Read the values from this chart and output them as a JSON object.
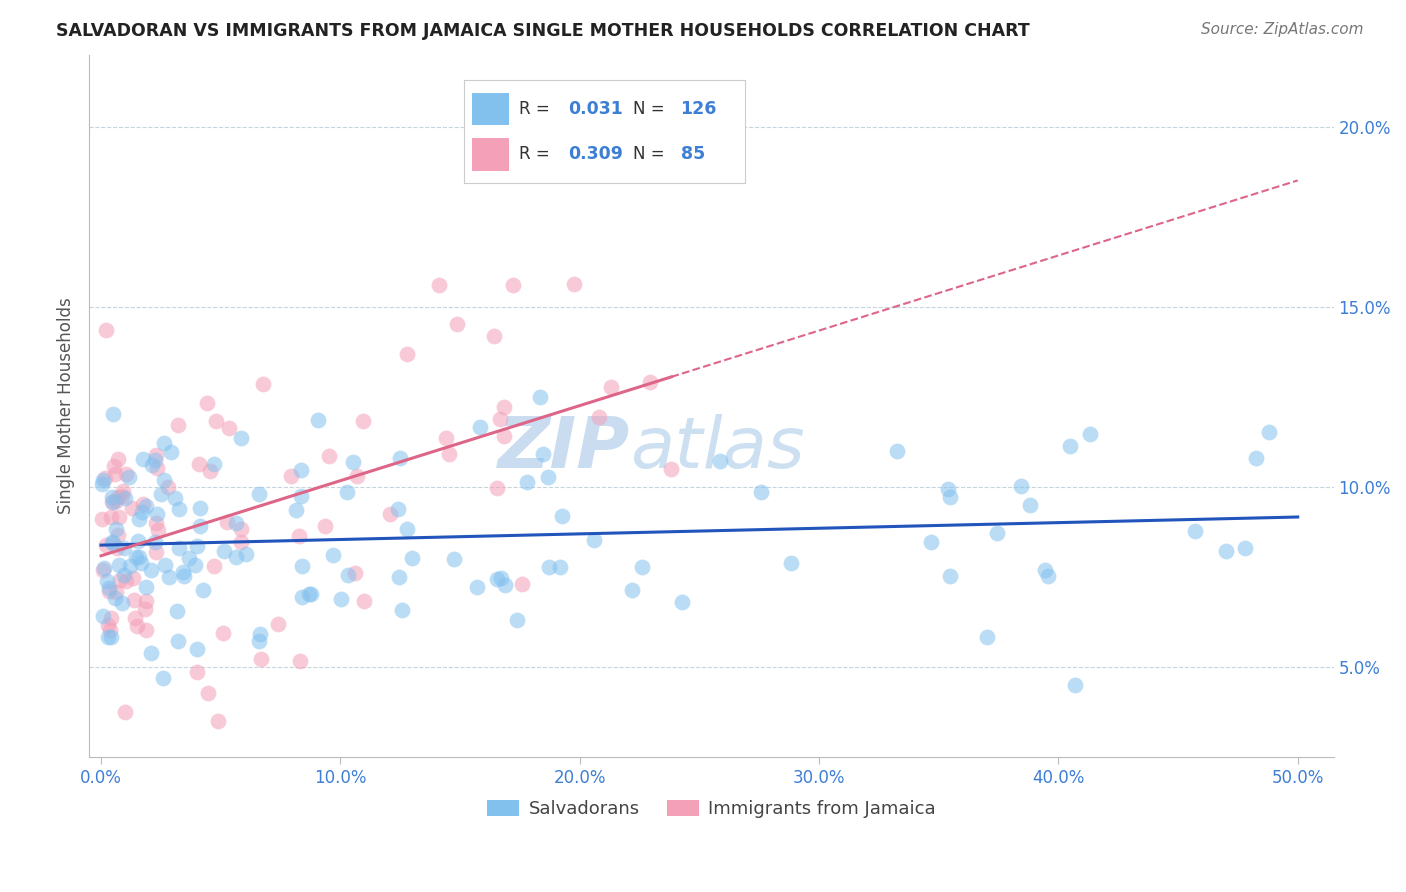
{
  "title": "SALVADORAN VS IMMIGRANTS FROM JAMAICA SINGLE MOTHER HOUSEHOLDS CORRELATION CHART",
  "source_text": "Source: ZipAtlas.com",
  "ylabel": "Single Mother Households",
  "xlabel_vals": [
    0.0,
    10.0,
    20.0,
    30.0,
    40.0,
    50.0
  ],
  "ylabel_vals": [
    5.0,
    10.0,
    15.0,
    20.0
  ],
  "legend_salvadoran": "Salvadorans",
  "legend_jamaica": "Immigrants from Jamaica",
  "R_salvadoran": 0.031,
  "N_salvadoran": 126,
  "R_jamaica": 0.309,
  "N_jamaica": 85,
  "color_blue": "#82C0EE",
  "color_pink": "#F4A0B8",
  "color_blue_line": "#2255BB",
  "color_pink_line": "#DD6688",
  "color_blue_text": "#3D7FD4",
  "watermark_color": "#CADDF0",
  "title_color": "#222222",
  "source_color": "#777777",
  "grid_color": "#C8D4DC",
  "seed": 12345
}
